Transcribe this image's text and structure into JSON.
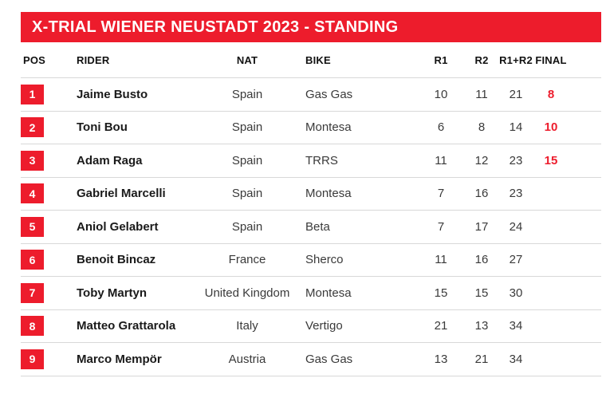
{
  "banner": {
    "title": "X-TRIAL WIENER NEUSTADT 2023 - STANDING"
  },
  "colors": {
    "accent_red": "#ed1c2c",
    "separator": "#d8d8d8",
    "banner_text": "#ffffff",
    "rider_text": "#1a1a1a",
    "body_text": "#3a3a3a"
  },
  "table": {
    "headers": {
      "pos": "POS",
      "rider": "RIDER",
      "nat": "NAT",
      "bike": "BIKE",
      "r1": "R1",
      "r2": "R2",
      "total": "R1+R2",
      "final": "FINAL"
    },
    "rows": [
      {
        "pos": "1",
        "rider": "Jaime Busto",
        "nat": "Spain",
        "bike": "Gas Gas",
        "r1": "10",
        "r2": "11",
        "total": "21",
        "final": "8"
      },
      {
        "pos": "2",
        "rider": "Toni Bou",
        "nat": "Spain",
        "bike": "Montesa",
        "r1": "6",
        "r2": "8",
        "total": "14",
        "final": "10"
      },
      {
        "pos": "3",
        "rider": "Adam Raga",
        "nat": "Spain",
        "bike": "TRRS",
        "r1": "11",
        "r2": "12",
        "total": "23",
        "final": "15"
      },
      {
        "pos": "4",
        "rider": "Gabriel Marcelli",
        "nat": "Spain",
        "bike": "Montesa",
        "r1": "7",
        "r2": "16",
        "total": "23",
        "final": ""
      },
      {
        "pos": "5",
        "rider": "Aniol Gelabert",
        "nat": "Spain",
        "bike": "Beta",
        "r1": "7",
        "r2": "17",
        "total": "24",
        "final": ""
      },
      {
        "pos": "6",
        "rider": "Benoit Bincaz",
        "nat": "France",
        "bike": "Sherco",
        "r1": "11",
        "r2": "16",
        "total": "27",
        "final": ""
      },
      {
        "pos": "7",
        "rider": "Toby Martyn",
        "nat": "United Kingdom",
        "bike": "Montesa",
        "r1": "15",
        "r2": "15",
        "total": "30",
        "final": ""
      },
      {
        "pos": "8",
        "rider": "Matteo Grattarola",
        "nat": "Italy",
        "bike": "Vertigo",
        "r1": "21",
        "r2": "13",
        "total": "34",
        "final": ""
      },
      {
        "pos": "9",
        "rider": "Marco Mempör",
        "nat": "Austria",
        "bike": "Gas Gas",
        "r1": "13",
        "r2": "21",
        "total": "34",
        "final": ""
      }
    ]
  }
}
